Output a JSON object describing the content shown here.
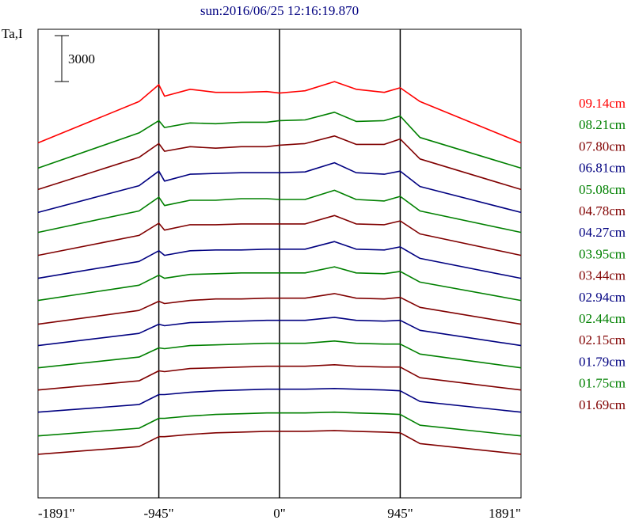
{
  "chart_data": {
    "type": "line",
    "title": "sun:2016/06/25 12:16:19.870",
    "ylabel": "Ta,I",
    "scale_bar_label": "3000",
    "scale_bar_value": 3000,
    "xlim": [
      -1891,
      1891
    ],
    "x_ticks": [
      {
        "value": -1891,
        "label": "-1891\""
      },
      {
        "value": -945,
        "label": "-945\""
      },
      {
        "value": 0,
        "label": "0\""
      },
      {
        "value": 945,
        "label": "945\""
      },
      {
        "value": 1891,
        "label": "1891\""
      }
    ],
    "vertical_lines": [
      -945,
      0,
      945
    ],
    "grid": false,
    "legend_position": "right",
    "series": [
      {
        "name": "09.14cm",
        "color": "#ff0000",
        "profile": [
          0,
          2700,
          3800,
          3050,
          3500,
          3300,
          3300,
          3350,
          3250,
          3400,
          4000,
          3500,
          3300,
          3600,
          2700,
          0
        ],
        "offset": 23200
      },
      {
        "name": "08.21cm",
        "color": "#008000",
        "profile": [
          0,
          2300,
          3100,
          2650,
          2950,
          2900,
          3000,
          3000,
          3100,
          3150,
          3650,
          3050,
          3100,
          3400,
          2000,
          0
        ],
        "offset": 21550
      },
      {
        "name": "07.80cm",
        "color": "#800000",
        "profile": [
          0,
          2100,
          3000,
          2500,
          2800,
          2700,
          2800,
          2800,
          2900,
          3000,
          3500,
          2950,
          2950,
          3300,
          2000,
          0
        ],
        "offset": 20150
      },
      {
        "name": "06.81cm",
        "color": "#000080",
        "profile": [
          0,
          1750,
          2700,
          2050,
          2500,
          2550,
          2600,
          2600,
          2600,
          2650,
          3250,
          2600,
          2500,
          2700,
          1700,
          0
        ],
        "offset": 18650
      },
      {
        "name": "05.08cm",
        "color": "#008000",
        "profile": [
          0,
          1400,
          2300,
          1750,
          2100,
          2100,
          2200,
          2200,
          2150,
          2150,
          2750,
          2150,
          2050,
          2350,
          1400,
          0
        ],
        "offset": 17350
      },
      {
        "name": "04.78cm",
        "color": "#800000",
        "profile": [
          0,
          1300,
          2100,
          1650,
          2000,
          2000,
          2050,
          2050,
          2050,
          2050,
          2600,
          2050,
          2000,
          2250,
          1400,
          0
        ],
        "offset": 15850
      },
      {
        "name": "04.27cm",
        "color": "#000080",
        "profile": [
          0,
          1100,
          1800,
          1500,
          1800,
          1850,
          1850,
          1900,
          1900,
          1900,
          2400,
          1900,
          1850,
          2050,
          1300,
          0
        ],
        "offset": 14350
      },
      {
        "name": "03.95cm",
        "color": "#008000",
        "profile": [
          0,
          1000,
          1650,
          1450,
          1700,
          1750,
          1800,
          1800,
          1800,
          1800,
          2200,
          1800,
          1750,
          1900,
          1200,
          0
        ],
        "offset": 12900
      },
      {
        "name": "03.44cm",
        "color": "#800000",
        "profile": [
          0,
          900,
          1500,
          1350,
          1550,
          1650,
          1650,
          1700,
          1700,
          1700,
          2000,
          1700,
          1650,
          1750,
          1100,
          0
        ],
        "offset": 11350
      },
      {
        "name": "02.94cm",
        "color": "#000080",
        "profile": [
          0,
          800,
          1400,
          1300,
          1500,
          1550,
          1600,
          1650,
          1650,
          1650,
          1850,
          1650,
          1600,
          1650,
          1000,
          0
        ],
        "offset": 9950
      },
      {
        "name": "02.44cm",
        "color": "#008000",
        "profile": [
          0,
          700,
          1300,
          1250,
          1450,
          1500,
          1550,
          1600,
          1600,
          1600,
          1750,
          1600,
          1550,
          1550,
          900,
          0
        ],
        "offset": 8500
      },
      {
        "name": "02.15cm",
        "color": "#800000",
        "profile": [
          0,
          600,
          1250,
          1200,
          1400,
          1450,
          1500,
          1550,
          1550,
          1550,
          1650,
          1550,
          1500,
          1500,
          800,
          0
        ],
        "offset": 7050
      },
      {
        "name": "01.79cm",
        "color": "#000080",
        "profile": [
          0,
          500,
          1150,
          1150,
          1300,
          1400,
          1450,
          1500,
          1500,
          1500,
          1550,
          1500,
          1450,
          1400,
          700,
          0
        ],
        "offset": 5600
      },
      {
        "name": "01.75cm",
        "color": "#008000",
        "profile": [
          0,
          500,
          1150,
          1150,
          1300,
          1400,
          1450,
          1500,
          1500,
          1500,
          1550,
          1500,
          1450,
          1400,
          700,
          0
        ],
        "offset": 4050
      },
      {
        "name": "01.69cm",
        "color": "#800000",
        "profile": [
          0,
          500,
          1150,
          1150,
          1300,
          1400,
          1450,
          1500,
          1500,
          1500,
          1550,
          1500,
          1450,
          1400,
          700,
          0
        ],
        "offset": 2850
      }
    ],
    "profile_x": [
      -1891,
      -1100,
      -945,
      -900,
      -700,
      -500,
      -300,
      -100,
      0,
      200,
      430,
      600,
      820,
      945,
      1100,
      1891
    ]
  }
}
